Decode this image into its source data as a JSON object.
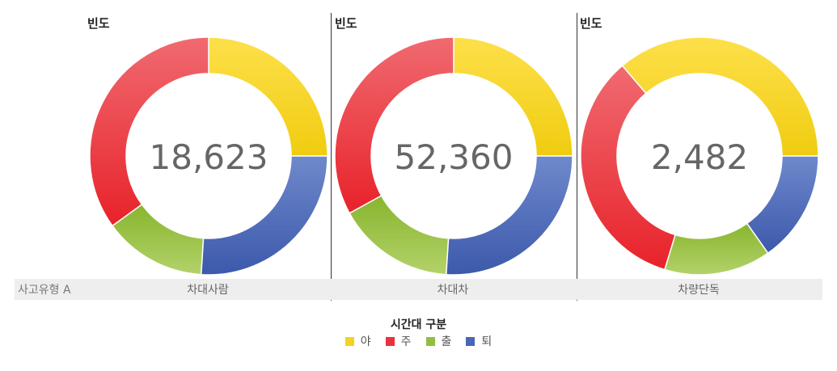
{
  "chart_data": {
    "type": "pie",
    "variant": "donut",
    "measure_label": "빈도",
    "row_header": "사고유형 A",
    "legend_title": "시간대 구분",
    "series": [
      {
        "name": "야",
        "color": "#f2d322"
      },
      {
        "name": "주",
        "color": "#e8333a"
      },
      {
        "name": "출",
        "color": "#93bd3d"
      },
      {
        "name": "퇴",
        "color": "#4a66b5"
      }
    ],
    "panels": [
      {
        "category": "차대사람",
        "total": "18,623",
        "values": [
          4656,
          6518,
          2607,
          4842
        ]
      },
      {
        "category": "차대차",
        "total": "52,360",
        "values": [
          13090,
          17279,
          8378,
          13613
        ]
      },
      {
        "category": "차량단독",
        "total": "2,482",
        "values": [
          900,
          844,
          360,
          378
        ]
      }
    ]
  }
}
